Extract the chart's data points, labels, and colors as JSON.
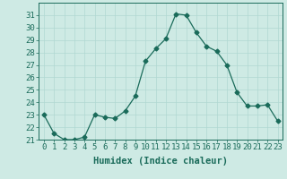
{
  "x": [
    0,
    1,
    2,
    3,
    4,
    5,
    6,
    7,
    8,
    9,
    10,
    11,
    12,
    13,
    14,
    15,
    16,
    17,
    18,
    19,
    20,
    21,
    22,
    23
  ],
  "y": [
    23,
    21.5,
    21,
    21,
    21.2,
    23,
    22.8,
    22.7,
    23.3,
    24.5,
    27.3,
    28.3,
    29.1,
    31.1,
    31.0,
    29.6,
    28.5,
    28.1,
    27.0,
    24.8,
    23.7,
    23.7,
    23.8,
    22.5
  ],
  "line_color": "#1a6b5a",
  "marker": "D",
  "marker_size": 2.5,
  "bg_color": "#ceeae4",
  "grid_color": "#b0d8d2",
  "xlabel": "Humidex (Indice chaleur)",
  "ylim": [
    21,
    32
  ],
  "xlim": [
    -0.5,
    23.5
  ],
  "yticks": [
    21,
    22,
    23,
    24,
    25,
    26,
    27,
    28,
    29,
    30,
    31
  ],
  "xticks": [
    0,
    1,
    2,
    3,
    4,
    5,
    6,
    7,
    8,
    9,
    10,
    11,
    12,
    13,
    14,
    15,
    16,
    17,
    18,
    19,
    20,
    21,
    22,
    23
  ],
  "tick_color": "#1a6b5a",
  "label_color": "#1a6b5a",
  "spine_color": "#1a6b5a",
  "tick_fontsize": 6.5,
  "xlabel_fontsize": 7.5
}
